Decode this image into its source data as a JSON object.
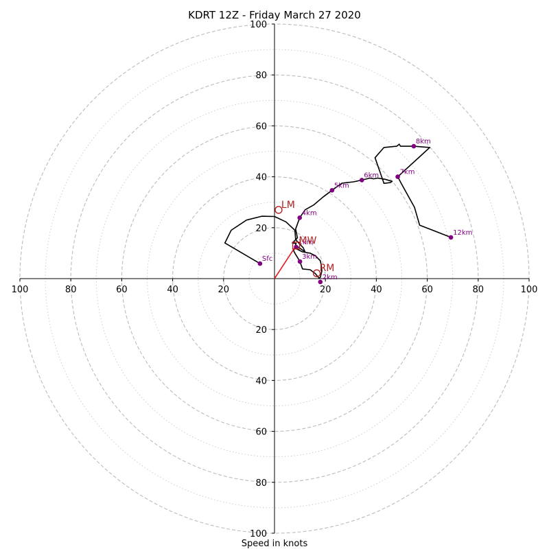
{
  "chart_data": {
    "type": "hodograph",
    "title": "KDRT 12Z - Friday March 27 2020",
    "xlabel": "Speed in knots",
    "rlim": [
      0,
      100
    ],
    "rings_dashed": [
      20,
      40,
      60,
      80,
      100
    ],
    "rings_dotted": [
      10,
      30,
      50,
      70,
      90
    ],
    "tick_labels_x": [
      "100",
      "80",
      "60",
      "40",
      "20",
      "20",
      "40",
      "60",
      "80",
      "100"
    ],
    "tick_values_x": [
      -100,
      -80,
      -60,
      -40,
      -20,
      20,
      40,
      60,
      80,
      100
    ],
    "tick_labels_y": [
      "100",
      "80",
      "60",
      "40",
      "20",
      "20",
      "40",
      "60",
      "80",
      "100"
    ],
    "tick_values_y": [
      100,
      80,
      60,
      40,
      20,
      -20,
      -40,
      -60,
      -80,
      -100
    ],
    "colors": {
      "trace": "#000000",
      "height_marker": "#800080",
      "motion": "#b22222",
      "shear_vector": "#e31a1c",
      "grid": "#bbbbbb"
    },
    "trace": [
      [
        -5.7,
        5.9
      ],
      [
        -19.5,
        14.0
      ],
      [
        -17.0,
        19.0
      ],
      [
        -11.0,
        23.0
      ],
      [
        -5.0,
        24.5
      ],
      [
        0,
        24.4
      ],
      [
        4.5,
        22.3
      ],
      [
        8.0,
        19.0
      ],
      [
        8.3,
        15.5
      ],
      [
        9.0,
        14.5
      ],
      [
        11.3,
        12.1
      ],
      [
        12.0,
        10.5
      ],
      [
        8.5,
        13.0
      ],
      [
        8.0,
        12.0
      ],
      [
        11.0,
        10.5
      ],
      [
        14.0,
        10.0
      ],
      [
        16.0,
        9.0
      ],
      [
        18.0,
        7.0
      ],
      [
        18.4,
        5.0
      ],
      [
        18.6,
        3.0
      ],
      [
        18.0,
        0.5
      ],
      [
        17.5,
        0.2
      ],
      [
        16.0,
        2.0
      ],
      [
        14.0,
        3.5
      ],
      [
        11.0,
        3.8
      ],
      [
        10.0,
        6.7
      ],
      [
        8.0,
        10.0
      ],
      [
        7.5,
        11.0
      ],
      [
        8.5,
        13.8
      ],
      [
        7.0,
        14.0
      ],
      [
        9.0,
        16.0
      ],
      [
        8.3,
        19.5
      ],
      [
        9.9,
        23.9
      ],
      [
        12.0,
        27.0
      ],
      [
        15.5,
        29.0
      ],
      [
        19.0,
        32.0
      ],
      [
        22.6,
        34.7
      ],
      [
        26.5,
        37.5
      ],
      [
        31.0,
        38.0
      ],
      [
        34.3,
        38.7
      ],
      [
        37.5,
        39.5
      ],
      [
        39.0,
        39.2
      ],
      [
        40.5,
        39.5
      ],
      [
        43.5,
        39.0
      ],
      [
        46.2,
        38.2
      ],
      [
        45.5,
        37.7
      ],
      [
        43.0,
        37.4
      ],
      [
        39.5,
        47.5
      ],
      [
        43.0,
        51.5
      ],
      [
        48.0,
        52.0
      ],
      [
        49.0,
        52.8
      ],
      [
        49.5,
        52.0
      ],
      [
        54.7,
        52.0
      ],
      [
        61.0,
        51.5
      ],
      [
        48.4,
        40.0
      ],
      [
        50.0,
        37.0
      ],
      [
        55.0,
        28.0
      ],
      [
        57.0,
        21.0
      ],
      [
        69.3,
        16.2
      ]
    ],
    "heights": [
      {
        "label": "Sfc",
        "u": -5.7,
        "v": 5.9
      },
      {
        "label": "1km",
        "u": 8.5,
        "v": 12.4
      },
      {
        "label": "2km",
        "u": 18.0,
        "v": -1.3
      },
      {
        "label": "3km",
        "u": 10.0,
        "v": 6.7
      },
      {
        "label": "4km",
        "u": 9.9,
        "v": 23.9
      },
      {
        "label": "5km",
        "u": 22.6,
        "v": 34.7
      },
      {
        "label": "6km",
        "u": 34.3,
        "v": 38.7
      },
      {
        "label": "7km",
        "u": 48.4,
        "v": 40.0
      },
      {
        "label": "8km",
        "u": 54.7,
        "v": 52.0
      },
      {
        "label": "12km",
        "u": 69.3,
        "v": 16.2
      }
    ],
    "storm_motions": [
      {
        "label": "LM",
        "u": 1.6,
        "v": 27.0
      },
      {
        "label": "MW",
        "u": 8.5,
        "v": 13.0
      },
      {
        "label": "RM",
        "u": 16.6,
        "v": 2.1
      }
    ],
    "shear_vector": {
      "from": [
        0,
        0
      ],
      "to": [
        8.5,
        13.0
      ]
    }
  }
}
